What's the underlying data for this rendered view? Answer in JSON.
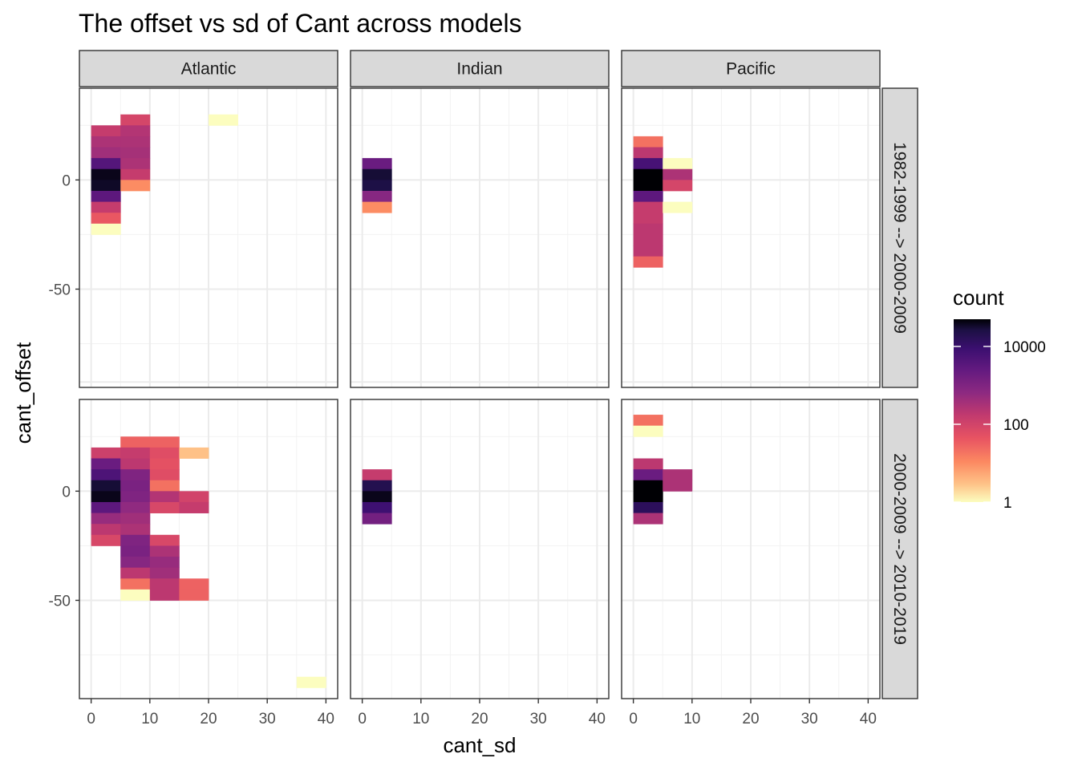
{
  "chart_data": {
    "type": "heatmap",
    "title": "The offset vs sd of Cant across models",
    "xlabel": "cant_sd",
    "ylabel": "cant_offset",
    "xlim": [
      -2,
      42
    ],
    "ylim": [
      -95,
      42
    ],
    "x_ticks": [
      0,
      10,
      20,
      30,
      40
    ],
    "x_tick_labels": [
      "0",
      "10",
      "20",
      "30",
      "40"
    ],
    "y_ticks": [
      0,
      -50
    ],
    "y_tick_labels": [
      "0",
      "-50"
    ],
    "columns": [
      "Atlantic",
      "Indian",
      "Pacific"
    ],
    "rows": [
      "1982-1999 --> 2000-2009",
      "2000-2009 --> 2010-2019"
    ],
    "bin_width_x": 5,
    "bin_width_y": 5,
    "legend": {
      "title": "count",
      "scale": "log10",
      "range": [
        1,
        50000
      ],
      "breaks": [
        1,
        100,
        10000
      ],
      "break_labels": [
        "1",
        "100",
        "10000"
      ]
    },
    "panels": [
      {
        "column": "Atlantic",
        "row": "1982-1999 --> 2000-2009",
        "bins": [
          [
            0,
            20,
            150
          ],
          [
            0,
            15,
            300
          ],
          [
            0,
            10,
            400
          ],
          [
            0,
            5,
            4000
          ],
          [
            0,
            0,
            40000
          ],
          [
            0,
            -5,
            35000
          ],
          [
            0,
            -10,
            3000
          ],
          [
            0,
            -15,
            150
          ],
          [
            0,
            -20,
            40
          ],
          [
            0,
            -25,
            1
          ],
          [
            5,
            25,
            90
          ],
          [
            5,
            20,
            250
          ],
          [
            5,
            15,
            300
          ],
          [
            5,
            10,
            350
          ],
          [
            5,
            5,
            300
          ],
          [
            5,
            0,
            150
          ],
          [
            5,
            -5,
            10
          ],
          [
            20,
            25,
            1
          ]
        ]
      },
      {
        "column": "Indian",
        "row": "1982-1999 --> 2000-2009",
        "bins": [
          [
            0,
            5,
            2000
          ],
          [
            0,
            0,
            30000
          ],
          [
            0,
            -5,
            25000
          ],
          [
            0,
            -10,
            800
          ],
          [
            0,
            -15,
            10
          ]
        ]
      },
      {
        "column": "Pacific",
        "row": "1982-1999 --> 2000-2009",
        "bins": [
          [
            0,
            15,
            20
          ],
          [
            0,
            10,
            200
          ],
          [
            0,
            5,
            6000
          ],
          [
            0,
            0,
            50000
          ],
          [
            0,
            -5,
            50000
          ],
          [
            0,
            -10,
            3000
          ],
          [
            0,
            -15,
            150
          ],
          [
            0,
            -20,
            150
          ],
          [
            0,
            -25,
            200
          ],
          [
            0,
            -30,
            200
          ],
          [
            0,
            -35,
            200
          ],
          [
            0,
            -40,
            30
          ],
          [
            5,
            5,
            1
          ],
          [
            5,
            0,
            300
          ],
          [
            5,
            -5,
            90
          ],
          [
            5,
            -15,
            1
          ]
        ]
      },
      {
        "column": "Atlantic",
        "row": "2000-2009 --> 2010-2019",
        "bins": [
          [
            0,
            15,
            120
          ],
          [
            0,
            10,
            2000
          ],
          [
            0,
            5,
            5000
          ],
          [
            0,
            0,
            30000
          ],
          [
            0,
            -5,
            40000
          ],
          [
            0,
            -10,
            3000
          ],
          [
            0,
            -15,
            500
          ],
          [
            0,
            -20,
            200
          ],
          [
            0,
            -25,
            80
          ],
          [
            5,
            20,
            30
          ],
          [
            5,
            15,
            150
          ],
          [
            5,
            10,
            200
          ],
          [
            5,
            5,
            1000
          ],
          [
            5,
            0,
            1200
          ],
          [
            5,
            -5,
            1000
          ],
          [
            5,
            -10,
            600
          ],
          [
            5,
            -15,
            400
          ],
          [
            5,
            -20,
            300
          ],
          [
            5,
            -25,
            1000
          ],
          [
            5,
            -30,
            1200
          ],
          [
            5,
            -35,
            800
          ],
          [
            5,
            -40,
            200
          ],
          [
            5,
            -45,
            20
          ],
          [
            5,
            -50,
            1
          ],
          [
            10,
            20,
            30
          ],
          [
            10,
            15,
            60
          ],
          [
            10,
            10,
            50
          ],
          [
            10,
            5,
            60
          ],
          [
            10,
            0,
            20
          ],
          [
            10,
            -5,
            250
          ],
          [
            10,
            -10,
            80
          ],
          [
            10,
            -25,
            80
          ],
          [
            10,
            -30,
            300
          ],
          [
            10,
            -35,
            500
          ],
          [
            10,
            -40,
            400
          ],
          [
            10,
            -45,
            200
          ],
          [
            10,
            -50,
            200
          ],
          [
            15,
            15,
            3
          ],
          [
            15,
            -5,
            100
          ],
          [
            15,
            -10,
            150
          ],
          [
            15,
            -45,
            30
          ],
          [
            15,
            -50,
            30
          ],
          [
            35,
            -90,
            1
          ]
        ]
      },
      {
        "column": "Indian",
        "row": "2000-2009 --> 2010-2019",
        "bins": [
          [
            0,
            5,
            150
          ],
          [
            0,
            0,
            20000
          ],
          [
            0,
            -5,
            40000
          ],
          [
            0,
            -10,
            8000
          ],
          [
            0,
            -15,
            1500
          ]
        ]
      },
      {
        "column": "Pacific",
        "row": "2000-2009 --> 2010-2019",
        "bins": [
          [
            0,
            30,
            20
          ],
          [
            0,
            25,
            1
          ],
          [
            0,
            10,
            200
          ],
          [
            0,
            5,
            2000
          ],
          [
            0,
            0,
            50000
          ],
          [
            0,
            -5,
            50000
          ],
          [
            0,
            -10,
            15000
          ],
          [
            0,
            -15,
            300
          ],
          [
            5,
            5,
            300
          ],
          [
            5,
            0,
            300
          ]
        ]
      }
    ]
  }
}
